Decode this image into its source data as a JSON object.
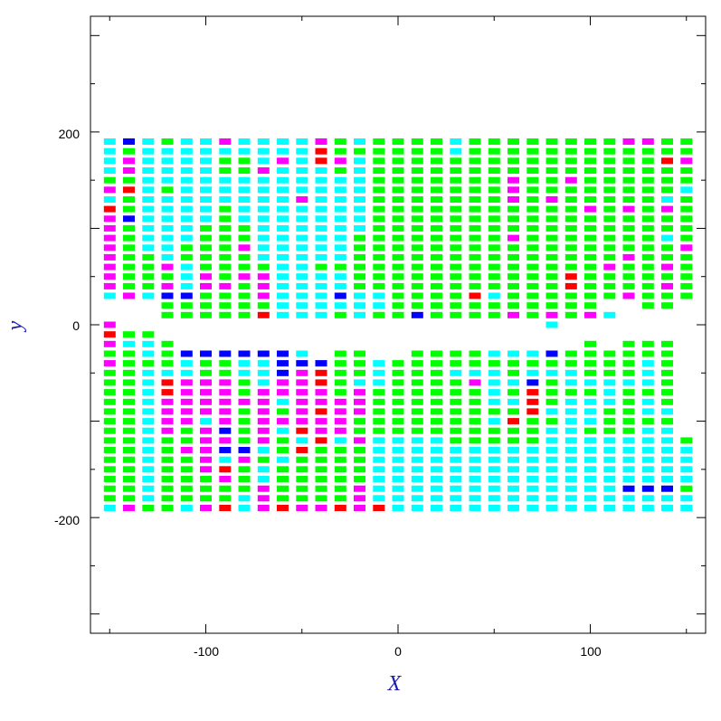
{
  "chart_data": {
    "type": "scatter",
    "title": "",
    "xlabel": "X",
    "ylabel": "y",
    "xlim": [
      -160,
      160
    ],
    "ylim": [
      -320,
      320
    ],
    "x_ticks": [
      "-100",
      "0",
      "100"
    ],
    "y_ticks": [
      "-200",
      "0",
      "200"
    ],
    "x_tick_values": [
      -100,
      0,
      100
    ],
    "y_tick_values": [
      -200,
      0,
      200
    ],
    "grid": false,
    "legend": "none",
    "marker": "filled rectangle",
    "colors": {
      "C": "#00ffff",
      "G": "#00ff00",
      "M": "#ff00ff",
      "R": "#ff0000",
      "B": "#0000ff"
    },
    "x_values": [
      -150,
      -140,
      -130,
      -120,
      -110,
      -100,
      -90,
      -80,
      -70,
      -60,
      -50,
      -40,
      -30,
      -20,
      -10,
      0,
      10,
      20,
      30,
      40,
      50,
      60,
      70,
      80,
      90,
      100,
      110,
      120,
      130,
      140,
      150
    ],
    "upper_y_values": [
      190,
      180,
      170,
      160,
      150,
      140,
      130,
      120,
      110,
      100,
      90,
      80,
      70,
      60,
      50,
      40,
      30,
      20,
      10,
      0
    ],
    "upper_rows": [
      "CBCGCCMCCCCMGCGGGGCGGGGGGGGMMGG",
      "CGCCCCCCCCCRGGGGGGCGGGGGGGGGGGG",
      "CMCCCCGGCMCRMCGGGGGGGGGGGGGGGRM",
      "CMCCCCGGMCCCGCGGGGGGGGGGGGGGGGG",
      "GGCCCCCCCCCCCCGGGGGGGMGGMGGGGGG",
      "MRCGCCCCCCCCCCGGGGGGGMGGGGGGGGC",
      "CGCCCCCCCCMCCCGGGGGGGMGMGGGGGCG",
      "RGCCCCGCCCCCCCGGGGGGGGGGGMGMGMG",
      "MBCCCCGCCCCCCCGGGGGGGGGGGGGGGGG",
      "MGCCCGGGCCCCCCGGGGGGGGGGGGGGGGG",
      "MGCCCGGGCCCCCGGGGGGGGMGGGGGGGCG",
      "MGCCGGGMCCCCCGGGGGGGGGGGGGGGGGM",
      "MGGCGGGGCCCCCGGGGGGGGGGGGGGMGGG",
      "MGGMCGGGGCCGGGGGGGGGGGGGGGMGGMG",
      "MGGGCMGMMCCCCGGGGGGGGGGGRGGGGGG",
      "MGGMCMMGMCCCCGGGGGGGGGGGRGGGGMG",
      "CMCBBGGGMCCCBCCGGGGRCGGGGGGMGGG",
      "...GGGGGGCCCCCCGGGGGGGGGGG..GG..",
      "...GGGGGRCCCGCGGBGGGGMGMGMC.....",
      "M......................C........"
    ],
    "lower_y_values": [
      -10,
      -20,
      -30,
      -40,
      -50,
      -60,
      -70,
      -80,
      -90,
      -100,
      -110,
      -120,
      -130,
      -140,
      -150,
      -160,
      -170,
      -180,
      -190
    ],
    "lower_rows": [
      "RGG............................",
      "MCCG.....................G.GGG..",
      "GGCGBBBBBBC.GG..GGGGCCCBGGGGGG.",
      "MGGGCGGCCBBBGGCGGGGGGGGGGGGGCG.",
      "GGCCCGGCCBMRGGCGGGCCCGCCCGGGCG.",
      "GGCRMMMGCMMRGCCGGGGMCCBGCCCCCG.",
      "GGCRMMMGMMMMGMGGGGGGCGRGGGCGGG.",
      "GGCMMMMMMCMMMMGGGGGGCCRGCCCGCG.",
      "GGCMMMMGMGMRMMGGGGGGGGRCCCGGCC.",
      "GGCMMCMGMMMMMGGGGGGGCRGGCCGGGG.",
      "GGCMGMBGMCRMMGGGGGGGGGGCCGGGCC.",
      "GGCGGMMGMGCRCMCCCCGGGGGCCCCCCCG",
      "GGCGMMBBCGRGGGCCCCCCCCCCCCCCCCC",
      "GGCGGMCMGCGGGGCCCCCCCCCCCCCCCCC",
      "GGCGGMRGCGGGGGCCCCCCCCCCCCCCCCC",
      "GGCGGGMGCGGGGGCCCCCCCCCCCCCCCCC",
      "GGCGGGGGMGGGGMCCCCCCCCCCCCCBBBG",
      "GGCGGGGCMGGGGMCCCCCCCCCCCCCCCCC",
      "CMGGCMRCMRMMRMRCCCCCCCCCCCCCCCC"
    ]
  }
}
